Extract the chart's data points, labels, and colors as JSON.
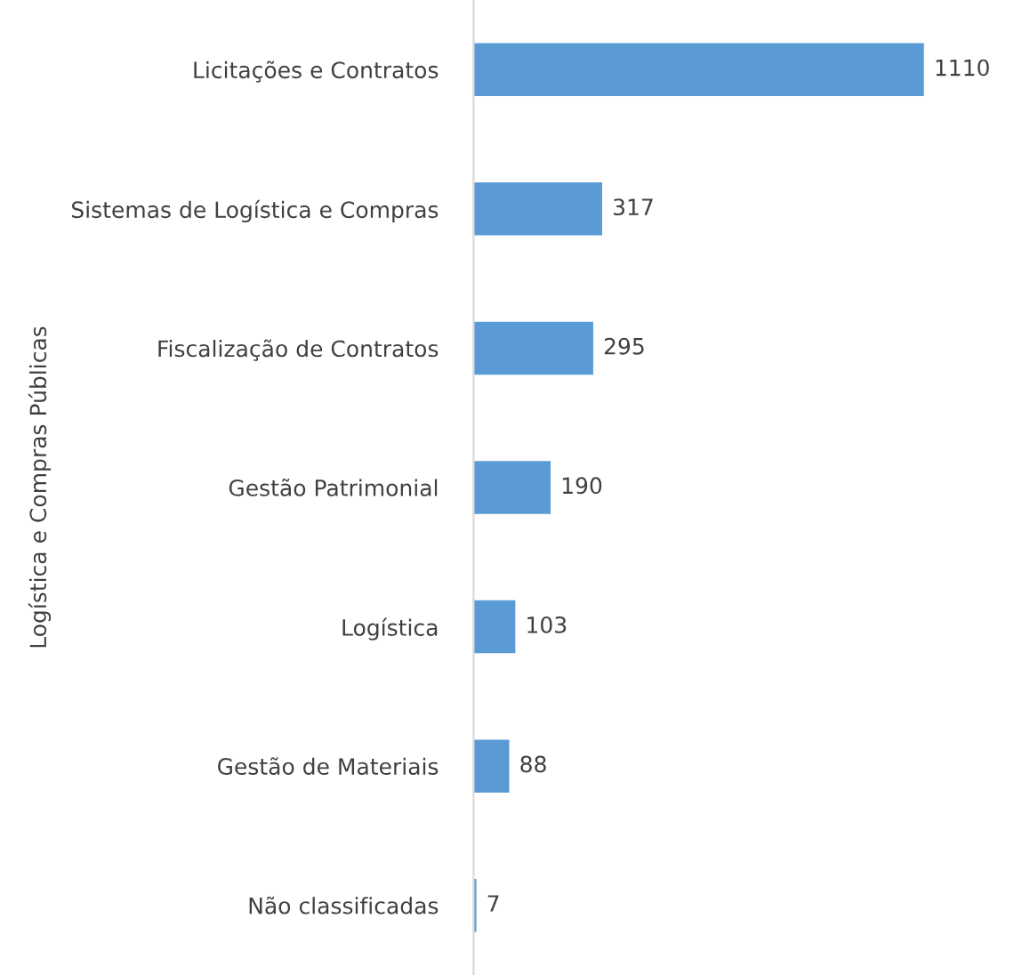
{
  "chart_data": {
    "type": "bar",
    "orientation": "horizontal",
    "ylabel": "Logística e Compras Públicas",
    "categories": [
      "Licitações e Contratos",
      "Sistemas de Logística e Compras",
      "Fiscalização de Contratos",
      "Gestão Patrimonial",
      "Logística",
      "Gestão de Materiais",
      "Não classificadas"
    ],
    "values": [
      1110,
      317,
      295,
      190,
      103,
      88,
      7
    ],
    "color": "#5b9bd5",
    "data_labels": true,
    "grid": false,
    "legend": false,
    "tick_labels": "y"
  }
}
